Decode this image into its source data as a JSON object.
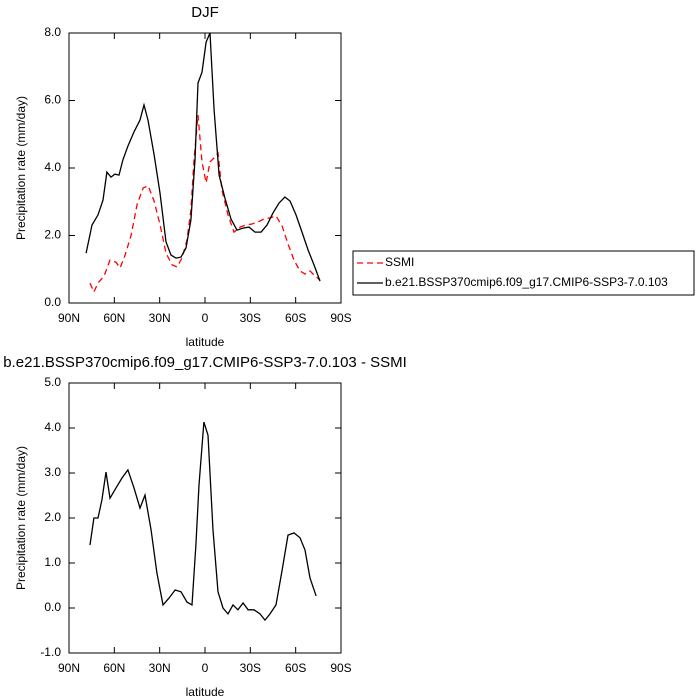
{
  "chart_data": [
    {
      "type": "line",
      "title": "DJF",
      "xlabel": "latitude",
      "ylabel": "Precipitation rate (mm/day)",
      "xlim": [
        90,
        -90
      ],
      "ylim": [
        0,
        8
      ],
      "xticks": [
        {
          "value": 90,
          "label": "90N"
        },
        {
          "value": 60,
          "label": "60N"
        },
        {
          "value": 30,
          "label": "30N"
        },
        0,
        {
          "value": -30,
          "label": "30S"
        },
        {
          "value": -60,
          "label": "60S"
        },
        {
          "value": -90,
          "label": "90S"
        }
      ],
      "yticks": [
        {
          "value": 0,
          "label": "0.0"
        },
        {
          "value": 2,
          "label": "2.0"
        },
        {
          "value": 4,
          "label": "4.0"
        },
        {
          "value": 6,
          "label": "6.0"
        },
        {
          "value": 8,
          "label": "8.0"
        }
      ],
      "legend": "right",
      "series": [
        {
          "name": "SSMI",
          "color": "#ff0000",
          "dashed": true,
          "x": [
            76.1,
            73.5,
            70.8,
            66.8,
            62.9,
            58.9,
            56.2,
            52.9,
            48.9,
            44.9,
            40.9,
            37.6,
            33.7,
            29.7,
            25.8,
            21.8,
            18.5,
            15.2,
            11.9,
            9.3,
            7.3,
            4.6,
            2,
            -0.7,
            -3.3,
            -6,
            -8.6,
            -11.2,
            -15.2,
            -19.2,
            -23.2,
            -27.1,
            -31.1,
            -35.1,
            -39,
            -43,
            -47,
            -51,
            -54.9,
            -58.9,
            -62.9,
            -66.2,
            -69.5,
            -72.8,
            -76.1
          ],
          "values": [
            0.59,
            0.33,
            0.59,
            0.8,
            1.27,
            1.21,
            1.04,
            1.42,
            2.01,
            2.93,
            3.41,
            3.47,
            3.02,
            2.31,
            1.48,
            1.13,
            1.07,
            1.33,
            1.87,
            2.76,
            4.24,
            5.57,
            4.18,
            3.56,
            4.18,
            4.3,
            4.44,
            3.35,
            2.61,
            2.1,
            2.25,
            2.31,
            2.34,
            2.4,
            2.49,
            2.52,
            2.58,
            2.28,
            1.75,
            1.27,
            0.95,
            0.86,
            0.95,
            0.8,
            0.68
          ]
        },
        {
          "name": "b.e21.BSSP370cmip6.f09_g17.CMIP6-SSP3-7.0.103",
          "color": "#000000",
          "dashed": false,
          "x": [
            78.7,
            74.8,
            70.8,
            67.5,
            64.9,
            62.2,
            59.6,
            56.9,
            54.3,
            51,
            47,
            43,
            40.4,
            37.7,
            33.7,
            29.8,
            25.8,
            22.5,
            19.2,
            15.9,
            12.6,
            9.3,
            6.6,
            4.6,
            2,
            -0.7,
            -3.3,
            -6,
            -9.3,
            -13.2,
            -17.2,
            -21.2,
            -25.2,
            -29.1,
            -33.1,
            -37.1,
            -41,
            -45,
            -49,
            -52.9,
            -56.3,
            -60.2,
            -64.2,
            -68.2,
            -72.1,
            -76.1
          ],
          "values": [
            1.48,
            2.31,
            2.61,
            3.05,
            3.88,
            3.73,
            3.82,
            3.79,
            4.24,
            4.65,
            5.07,
            5.42,
            5.87,
            5.42,
            4.39,
            3.26,
            1.81,
            1.42,
            1.33,
            1.36,
            1.63,
            2.46,
            4.24,
            6.52,
            6.84,
            7.73,
            8.0,
            5.72,
            3.79,
            3.11,
            2.49,
            2.16,
            2.22,
            2.25,
            2.1,
            2.1,
            2.31,
            2.67,
            2.96,
            3.14,
            3.02,
            2.61,
            2.1,
            1.57,
            1.13,
            0.65
          ]
        }
      ]
    },
    {
      "type": "line",
      "title": "b.e21.BSSP370cmip6.f09_g17.CMIP6-SSP3-7.0.103 - SSMI",
      "xlabel": "latitude",
      "ylabel": "Precipitation rate (mm/day)",
      "xlim": [
        90,
        -90
      ],
      "ylim": [
        -1,
        5
      ],
      "xticks": [
        {
          "value": 90,
          "label": "90N"
        },
        {
          "value": 60,
          "label": "60N"
        },
        {
          "value": 30,
          "label": "30N"
        },
        0,
        {
          "value": -30,
          "label": "30S"
        },
        {
          "value": -60,
          "label": "60S"
        },
        {
          "value": -90,
          "label": "90S"
        }
      ],
      "yticks": [
        {
          "value": -1,
          "label": "-1.0"
        },
        {
          "value": 0,
          "label": "0.0"
        },
        {
          "value": 1,
          "label": "1.0"
        },
        {
          "value": 2,
          "label": "2.0"
        },
        {
          "value": 3,
          "label": "3.0"
        },
        {
          "value": 4,
          "label": "4.0"
        },
        {
          "value": 5,
          "label": "5.0"
        }
      ],
      "series": [
        {
          "color": "#000000",
          "dashed": false,
          "x": [
            76.1,
            73.5,
            70.8,
            68.2,
            65.5,
            62.9,
            58.9,
            54.9,
            51,
            47,
            43,
            39.7,
            35.7,
            31.8,
            27.8,
            23.8,
            19.8,
            15.9,
            11.9,
            8.6,
            6,
            4,
            0.7,
            -2,
            -5.3,
            -8.6,
            -11.9,
            -15.2,
            -18.5,
            -21.8,
            -25.2,
            -28.5,
            -32.4,
            -36.4,
            -39.7,
            -43,
            -47,
            -51,
            -54.9,
            -58.9,
            -62.9,
            -66.2,
            -69.5,
            -73.5
          ],
          "values": [
            1.4,
            2.0,
            2.0,
            2.4,
            3.02,
            2.44,
            2.67,
            2.89,
            3.07,
            2.67,
            2.22,
            2.51,
            1.73,
            0.78,
            0.07,
            0.22,
            0.4,
            0.36,
            0.13,
            0.07,
            1.4,
            2.73,
            4.13,
            3.84,
            1.73,
            0.36,
            0,
            -0.13,
            0.07,
            -0.04,
            0.11,
            -0.04,
            -0.04,
            -0.13,
            -0.27,
            -0.13,
            0.07,
            0.84,
            1.62,
            1.67,
            1.56,
            1.29,
            0.67,
            0.27
          ]
        }
      ]
    }
  ]
}
